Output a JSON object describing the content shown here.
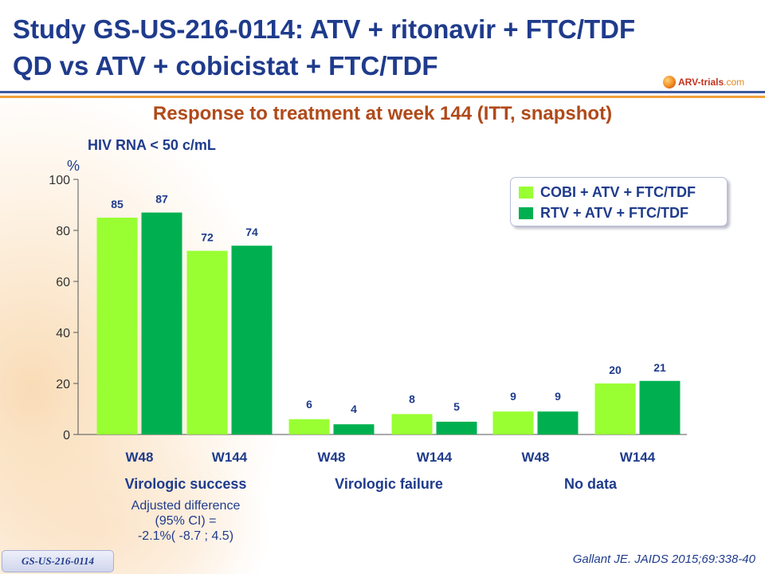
{
  "title": {
    "line1": "Study GS-US-216-0114: ATV + ritonavir + FTC/TDF",
    "line2": "QD vs ATV + cobicistat + FTC/TDF"
  },
  "logo": {
    "brand": "ARV-trials",
    "suffix": ".com"
  },
  "subtitle": "Response to treatment at week 144 (ITT, snapshot)",
  "chart_label": "HIV RNA < 50 c/mL",
  "y_unit": "%",
  "legend": [
    {
      "label": "COBI + ATV + FTC/TDF"
    },
    {
      "label": "RTV + ATV + FTC/TDF"
    }
  ],
  "adjusted_difference": {
    "line1": "Adjusted difference",
    "line2": "(95% CI) =",
    "line3": "-2.1%( -8.7 ; 4.5)"
  },
  "study_badge": "GS-US-216-0114",
  "citation": "Gallant JE. JAIDS 2015;69:338-40",
  "chart_data": {
    "type": "bar",
    "title": "Response to treatment at week 144 (ITT, snapshot)",
    "ylabel": "%",
    "ylim": [
      0,
      100
    ],
    "yticks": [
      0,
      20,
      40,
      60,
      80,
      100
    ],
    "grid": false,
    "legend_position": "top-right",
    "categories": [
      "W48",
      "W144",
      "W48",
      "W144",
      "W48",
      "W144"
    ],
    "groups": [
      {
        "label": "Virologic  success",
        "categories": [
          0,
          1
        ]
      },
      {
        "label": "Virologic  failure",
        "categories": [
          2,
          3
        ]
      },
      {
        "label": "No data",
        "categories": [
          4,
          5
        ]
      }
    ],
    "series": [
      {
        "name": "COBI + ATV + FTC/TDF",
        "color": "#99ff33",
        "values": [
          85,
          72,
          6,
          8,
          9,
          20
        ]
      },
      {
        "name": "RTV + ATV + FTC/TDF",
        "color": "#00b050",
        "values": [
          87,
          74,
          4,
          5,
          9,
          21
        ]
      }
    ]
  }
}
